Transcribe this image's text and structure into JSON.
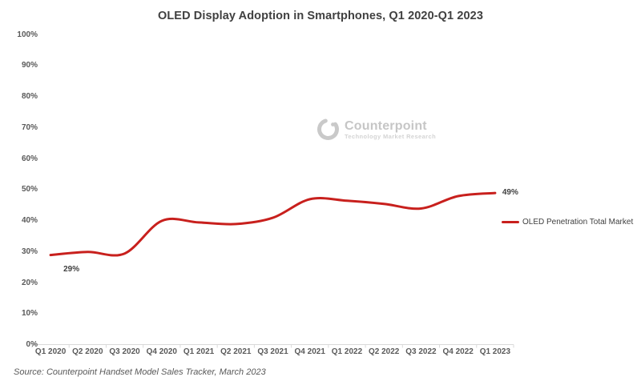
{
  "title": "OLED Display Adoption in Smartphones, Q1 2020-Q1 2023",
  "watermark": {
    "name": "Counterpoint",
    "tagline": "Technology Market Research"
  },
  "legend": {
    "label": "OLED Penetration Total Market"
  },
  "source": "Source: Counterpoint Handset Model Sales Tracker, March 2023",
  "colors": {
    "line": "#C8201D",
    "axis_line": "#D9D9D9",
    "axis_text": "#595959",
    "title_text": "#404040",
    "watermark_gray": "#C6C6C6"
  },
  "chart_data": {
    "type": "line",
    "title": "OLED Display Adoption in Smartphones, Q1 2020-Q1 2023",
    "categories": [
      "Q1 2020",
      "Q2 2020",
      "Q3 2020",
      "Q4 2020",
      "Q1 2021",
      "Q2 2021",
      "Q3 2021",
      "Q4 2021",
      "Q1 2022",
      "Q2 2022",
      "Q3 2022",
      "Q4 2022",
      "Q1 2023"
    ],
    "series": [
      {
        "name": "OLED Penetration Total Market",
        "color": "#C8201D",
        "values": [
          29,
          30,
          29.5,
          40,
          39.5,
          39,
          41,
          47,
          46.5,
          45.5,
          44,
          48,
          49
        ]
      }
    ],
    "ylim": [
      0,
      100
    ],
    "y_tick_step": 10,
    "y_tick_labels": [
      "0%",
      "10%",
      "20%",
      "30%",
      "40%",
      "50%",
      "60%",
      "70%",
      "80%",
      "90%",
      "100%"
    ],
    "xlabel": "",
    "ylabel": "",
    "grid": false,
    "smooth": true,
    "legend_position": "right",
    "data_point_labels": [
      {
        "index": 0,
        "text": "29%"
      },
      {
        "index": 12,
        "text": "49%"
      }
    ]
  }
}
